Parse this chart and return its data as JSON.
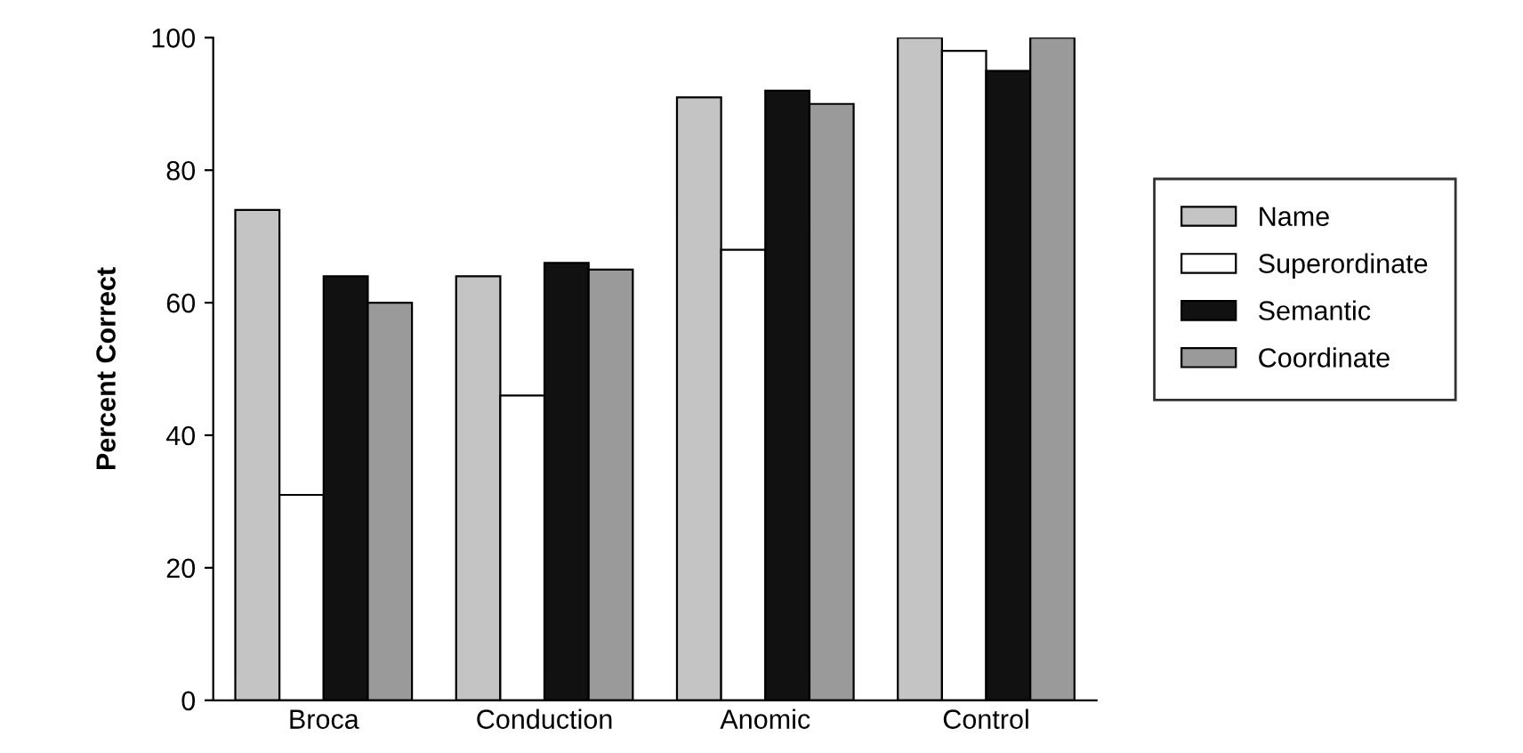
{
  "chart_data": {
    "type": "bar",
    "ylabel": "Percent Correct",
    "categories": [
      "Broca",
      "Conduction",
      "Anomic",
      "Control"
    ],
    "series": [
      {
        "name": "Name",
        "color": "#c4c4c4",
        "values": [
          74,
          64,
          91,
          100
        ]
      },
      {
        "name": "Superordinate",
        "color": "#ffffff",
        "values": [
          31,
          46,
          68,
          98
        ]
      },
      {
        "name": "Semantic",
        "color": "#111111",
        "values": [
          64,
          66,
          92,
          95
        ]
      },
      {
        "name": "Coordinate",
        "color": "#9a9a9a",
        "values": [
          60,
          65,
          90,
          100
        ]
      }
    ],
    "ylim": [
      0,
      100
    ],
    "yticks": [
      0,
      20,
      40,
      60,
      80,
      100
    ],
    "grid": false,
    "legend": "right"
  }
}
